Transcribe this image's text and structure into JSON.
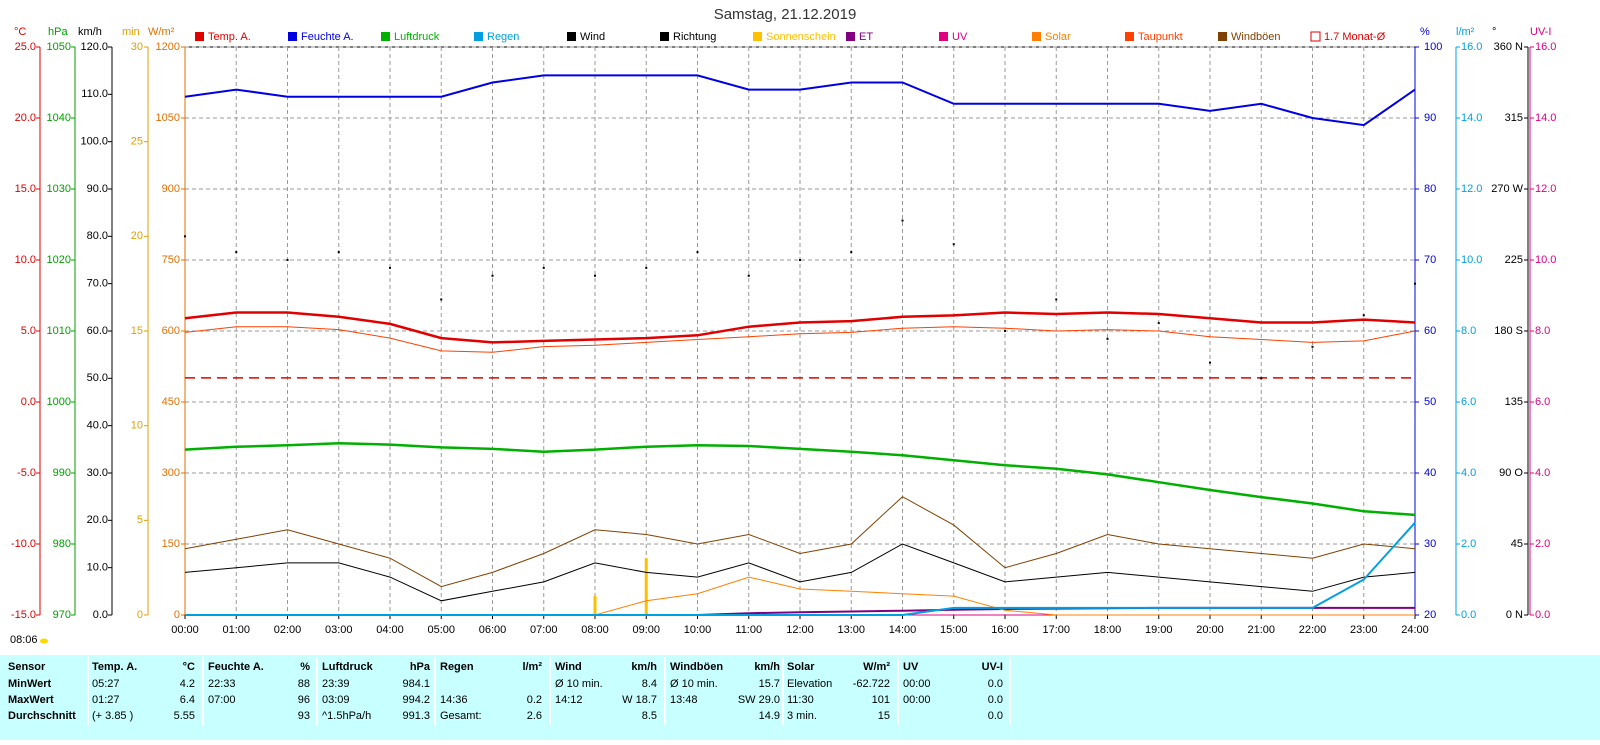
{
  "chart_data": {
    "type": "line",
    "title": "Samstag, 21.12.2019",
    "footer_time": "08:06",
    "xlim": [
      0,
      24
    ],
    "xticks": [
      {
        "value": 0,
        "label": "00:00"
      },
      {
        "value": 1,
        "label": "01:00"
      },
      {
        "value": 2,
        "label": "02:00"
      },
      {
        "value": 3,
        "label": "03:00"
      },
      {
        "value": 4,
        "label": "04:00"
      },
      {
        "value": 5,
        "label": "05:00"
      },
      {
        "value": 6,
        "label": "06:00"
      },
      {
        "value": 7,
        "label": "07:00"
      },
      {
        "value": 8,
        "label": "08:00"
      },
      {
        "value": 9,
        "label": "09:00"
      },
      {
        "value": 10,
        "label": "10:00"
      },
      {
        "value": 11,
        "label": "11:00"
      },
      {
        "value": 12,
        "label": "12:00"
      },
      {
        "value": 13,
        "label": "13:00"
      },
      {
        "value": 14,
        "label": "14:00"
      },
      {
        "value": 15,
        "label": "15:00"
      },
      {
        "value": 16,
        "label": "16:00"
      },
      {
        "value": 17,
        "label": "17:00"
      },
      {
        "value": 18,
        "label": "18:00"
      },
      {
        "value": 19,
        "label": "19:00"
      },
      {
        "value": 20,
        "label": "20:00"
      },
      {
        "value": 21,
        "label": "21:00"
      },
      {
        "value": 22,
        "label": "22:00"
      },
      {
        "value": 23,
        "label": "23:00"
      },
      {
        "value": 24,
        "label": "24:00"
      }
    ],
    "grid": true,
    "axes": {
      "C": {
        "unit": "°C",
        "color": "#e00000",
        "lim": [
          -15,
          25
        ],
        "ticks": [
          {
            "value": -15,
            "label": "-15.0"
          },
          {
            "value": -10,
            "label": "-10.0"
          },
          {
            "value": -5,
            "label": "-5.0"
          },
          {
            "value": 0,
            "label": "0.0"
          },
          {
            "value": 5,
            "label": "5.0"
          },
          {
            "value": 10,
            "label": "10.0"
          },
          {
            "value": 15,
            "label": "15.0"
          },
          {
            "value": 20,
            "label": "20.0"
          },
          {
            "value": 25,
            "label": "25.0"
          }
        ]
      },
      "hPa": {
        "unit": "hPa",
        "color": "#00a000",
        "lim": [
          970,
          1050
        ],
        "ticks": [
          970,
          980,
          990,
          1000,
          1010,
          1020,
          1030,
          1040,
          1050
        ]
      },
      "kmh": {
        "unit": "km/h",
        "color": "#000000",
        "lim": [
          0,
          120
        ],
        "ticks": [
          {
            "value": 0,
            "label": "0.0"
          },
          {
            "value": 10,
            "label": "10.0"
          },
          {
            "value": 20,
            "label": "20.0"
          },
          {
            "value": 30,
            "label": "30.0"
          },
          {
            "value": 40,
            "label": "40.0"
          },
          {
            "value": 50,
            "label": "50.0"
          },
          {
            "value": 60,
            "label": "60.0"
          },
          {
            "value": 70,
            "label": "70.0"
          },
          {
            "value": 80,
            "label": "80.0"
          },
          {
            "value": 90,
            "label": "90.0"
          },
          {
            "value": 100,
            "label": "100.0"
          },
          {
            "value": 110,
            "label": "110.0"
          },
          {
            "value": 120,
            "label": "120.0"
          }
        ]
      },
      "min": {
        "unit": "min",
        "color": "#e0a000",
        "lim": [
          0,
          30
        ],
        "ticks": [
          0,
          5,
          10,
          15,
          20,
          25,
          30
        ]
      },
      "W": {
        "unit": "W/m²",
        "color": "#e07000",
        "lim": [
          0,
          1200
        ],
        "ticks": [
          0,
          150,
          300,
          450,
          600,
          750,
          900,
          1050,
          1200
        ]
      },
      "pct": {
        "unit": "%",
        "color": "#0000e0",
        "lim": [
          20,
          100
        ],
        "ticks": [
          20,
          30,
          40,
          50,
          60,
          70,
          80,
          90,
          100
        ]
      },
      "lm2": {
        "unit": "l/m²",
        "color": "#00a0e0",
        "lim": [
          0,
          16
        ],
        "ticks": [
          {
            "value": 0,
            "label": "0.0"
          },
          {
            "value": 2,
            "label": "2.0"
          },
          {
            "value": 4,
            "label": "4.0"
          },
          {
            "value": 6,
            "label": "6.0"
          },
          {
            "value": 8,
            "label": "8.0"
          },
          {
            "value": 10,
            "label": "10.0"
          },
          {
            "value": 12,
            "label": "12.0"
          },
          {
            "value": 14,
            "label": "14.0"
          },
          {
            "value": 16,
            "label": "16.0"
          }
        ]
      },
      "deg": {
        "unit": "°",
        "color": "#000000",
        "lim": [
          0,
          360
        ],
        "ticks": [
          {
            "value": 0,
            "label": "0 N"
          },
          45,
          {
            "value": 90,
            "label": "90 O"
          },
          135,
          {
            "value": 180,
            "label": "180 S"
          },
          225,
          {
            "value": 270,
            "label": "270 W"
          },
          315,
          {
            "value": 360,
            "label": "360 N"
          }
        ]
      },
      "uvi": {
        "unit": "UV-I",
        "color": "#e00080",
        "lim": [
          0,
          16
        ],
        "ticks": [
          {
            "value": 0,
            "label": "0.0"
          },
          {
            "value": 2,
            "label": "2.0"
          },
          {
            "value": 4,
            "label": "4.0"
          },
          {
            "value": 6,
            "label": "6.0"
          },
          {
            "value": 8,
            "label": "8.0"
          },
          {
            "value": 10,
            "label": "10.0"
          },
          {
            "value": 12,
            "label": "12.0"
          },
          {
            "value": 14,
            "label": "14.0"
          },
          {
            "value": 16,
            "label": "16.0"
          }
        ]
      }
    },
    "x": [
      0,
      1,
      2,
      3,
      4,
      5,
      6,
      7,
      8,
      9,
      10,
      11,
      12,
      13,
      14,
      15,
      16,
      17,
      18,
      19,
      20,
      21,
      22,
      23,
      24
    ],
    "series": [
      {
        "name": "Temp. A.",
        "color": "#e00000",
        "axis": "C",
        "kind": "line",
        "width": 2.5,
        "values": [
          5.9,
          6.3,
          6.3,
          6.0,
          5.5,
          4.5,
          4.2,
          4.3,
          4.4,
          4.5,
          4.7,
          5.3,
          5.6,
          5.7,
          6.0,
          6.1,
          6.3,
          6.2,
          6.3,
          6.2,
          5.9,
          5.6,
          5.6,
          5.8,
          5.6
        ]
      },
      {
        "name": "Feuchte A.",
        "color": "#0000e0",
        "axis": "pct",
        "kind": "line",
        "width": 2,
        "values": [
          93,
          94,
          93,
          93,
          93,
          93,
          95,
          96,
          96,
          96,
          96,
          94,
          94,
          95,
          95,
          92,
          92,
          92,
          92,
          92,
          91,
          92,
          90,
          89,
          94
        ]
      },
      {
        "name": "Luftdruck",
        "color": "#00b000",
        "axis": "hPa",
        "kind": "line",
        "width": 2.5,
        "values": [
          993.3,
          993.7,
          993.9,
          994.2,
          994.0,
          993.6,
          993.4,
          993.0,
          993.3,
          993.7,
          993.9,
          993.8,
          993.4,
          993.0,
          992.5,
          991.8,
          991.1,
          990.6,
          989.8,
          988.7,
          987.6,
          986.6,
          985.7,
          984.6,
          984.1
        ]
      },
      {
        "name": "Regen",
        "color": "#00a0e0",
        "axis": "lm2",
        "kind": "line",
        "width": 2,
        "values": [
          0,
          0,
          0,
          0,
          0,
          0,
          0,
          0,
          0,
          0,
          0,
          0,
          0,
          0,
          0,
          0.2,
          0.2,
          0.2,
          0.2,
          0.2,
          0.2,
          0.2,
          0.2,
          1.0,
          2.6
        ]
      },
      {
        "name": "Wind",
        "color": "#000000",
        "axis": "kmh",
        "kind": "line",
        "width": 1,
        "values": [
          9,
          10,
          11,
          11,
          8,
          3,
          5,
          7,
          11,
          9,
          8,
          11,
          7,
          9,
          15,
          11,
          7,
          8,
          9,
          8,
          7,
          6,
          5,
          8,
          9
        ]
      },
      {
        "name": "Richtung",
        "color": "#000000",
        "axis": "deg",
        "kind": "points",
        "values": [
          240,
          230,
          225,
          230,
          220,
          200,
          215,
          220,
          215,
          220,
          230,
          215,
          225,
          230,
          250,
          235,
          180,
          200,
          175,
          185,
          160,
          150,
          170,
          190,
          210
        ]
      },
      {
        "name": "Sonnenschein",
        "color": "#ffc000",
        "axis": "min",
        "kind": "bars",
        "values": [
          0,
          0,
          0,
          0,
          0,
          0,
          0,
          0,
          1,
          3,
          0,
          0,
          0,
          0,
          0,
          0,
          0,
          0,
          0,
          0,
          0,
          0,
          0,
          0,
          0
        ]
      },
      {
        "name": "ET",
        "color": "#800080",
        "axis": "lm2",
        "kind": "line",
        "width": 2,
        "values": [
          0,
          0,
          0,
          0,
          0,
          0,
          0,
          0,
          0,
          0,
          0,
          0.05,
          0.08,
          0.1,
          0.12,
          0.15,
          0.17,
          0.18,
          0.19,
          0.2,
          0.2,
          0.2,
          0.2,
          0.2,
          0.2
        ]
      },
      {
        "name": "UV",
        "color": "#e00080",
        "axis": "uvi",
        "kind": "line",
        "width": 1,
        "values": [
          0,
          0,
          0,
          0,
          0,
          0,
          0,
          0,
          0,
          0,
          0,
          0,
          0,
          0,
          0,
          0,
          0,
          0,
          0,
          0,
          0,
          0,
          0,
          0,
          0
        ]
      },
      {
        "name": "Solar",
        "color": "#ff8000",
        "axis": "W",
        "kind": "line",
        "width": 1,
        "values": [
          0,
          0,
          0,
          0,
          0,
          0,
          0,
          0,
          0,
          30,
          45,
          80,
          55,
          50,
          45,
          40,
          10,
          0,
          0,
          0,
          0,
          0,
          0,
          0,
          0
        ]
      },
      {
        "name": "Taupunkt",
        "color": "#ff4000",
        "axis": "C",
        "kind": "line",
        "width": 1,
        "values": [
          4.9,
          5.3,
          5.3,
          5.1,
          4.5,
          3.6,
          3.5,
          3.9,
          4.0,
          4.2,
          4.4,
          4.6,
          4.8,
          4.9,
          5.2,
          5.3,
          5.2,
          5.0,
          5.1,
          5.0,
          4.6,
          4.4,
          4.2,
          4.3,
          5.0
        ]
      },
      {
        "name": "Windböen",
        "color": "#804000",
        "axis": "kmh",
        "kind": "line",
        "width": 1,
        "values": [
          14,
          16,
          18,
          15,
          12,
          6,
          9,
          13,
          18,
          17,
          15,
          17,
          13,
          15,
          25,
          19,
          10,
          13,
          17,
          15,
          14,
          13,
          12,
          15,
          14
        ]
      }
    ],
    "reference": {
      "name": "1.7 Monat-Ø",
      "value": 1.7,
      "axis": "C",
      "color": "#e00000"
    }
  },
  "table": {
    "header": [
      "Sensor",
      "Temp. A.",
      "°C",
      "Feuchte A.",
      "%",
      "Luftdruck",
      "hPa",
      "Regen",
      "l/m²",
      "Wind",
      "km/h",
      "Windböen",
      "km/h",
      "Solar",
      "W/m²",
      "UV",
      "UV-I"
    ],
    "rows": [
      [
        "MinWert",
        "05:27",
        "4.2",
        "22:33",
        "88",
        "23:39",
        "984.1",
        null,
        null,
        "Ø 10 min.",
        "8.4",
        "Ø 10 min.",
        "15.7",
        "Elevation",
        "-62.722",
        "00:00",
        "0.0"
      ],
      [
        "MaxWert",
        "01:27",
        "6.4",
        "07:00",
        "96",
        "03:09",
        "994.2",
        "14:36",
        "0.2",
        "14:12",
        "W 18.7",
        "13:48",
        "SW 29.0",
        "11:30",
        "101",
        "00:00",
        "0.0"
      ],
      [
        "Durchschnitt",
        "(+ 3.85 )",
        "5.55",
        null,
        "93",
        "^1.5hPa/h",
        "991.3",
        "Gesamt:",
        "2.6",
        null,
        "8.5",
        null,
        "14.9",
        "3 min.",
        "15",
        null,
        "0.0"
      ]
    ]
  }
}
